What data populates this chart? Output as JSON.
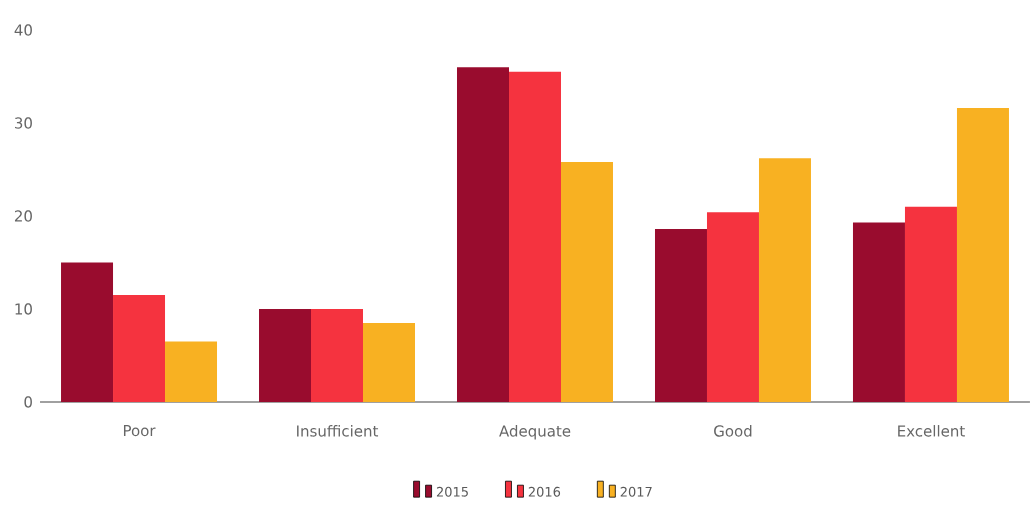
{
  "chart_data": {
    "type": "bar",
    "categories": [
      "Poor",
      "Insufficient",
      "Adequate",
      "Good",
      "Excellent"
    ],
    "series": [
      {
        "name": "2015",
        "color": "#990c2e",
        "values": [
          15,
          10,
          36,
          18.6,
          19.3
        ]
      },
      {
        "name": "2016",
        "color": "#f5333f",
        "values": [
          11.5,
          10,
          35.5,
          20.4,
          21
        ]
      },
      {
        "name": "2017",
        "color": "#f8b122",
        "values": [
          6.5,
          8.5,
          25.8,
          26.2,
          31.6
        ]
      }
    ],
    "ylim": [
      0,
      40
    ],
    "yticks": [
      0,
      10,
      20,
      30,
      40
    ],
    "legend": "bottom"
  }
}
